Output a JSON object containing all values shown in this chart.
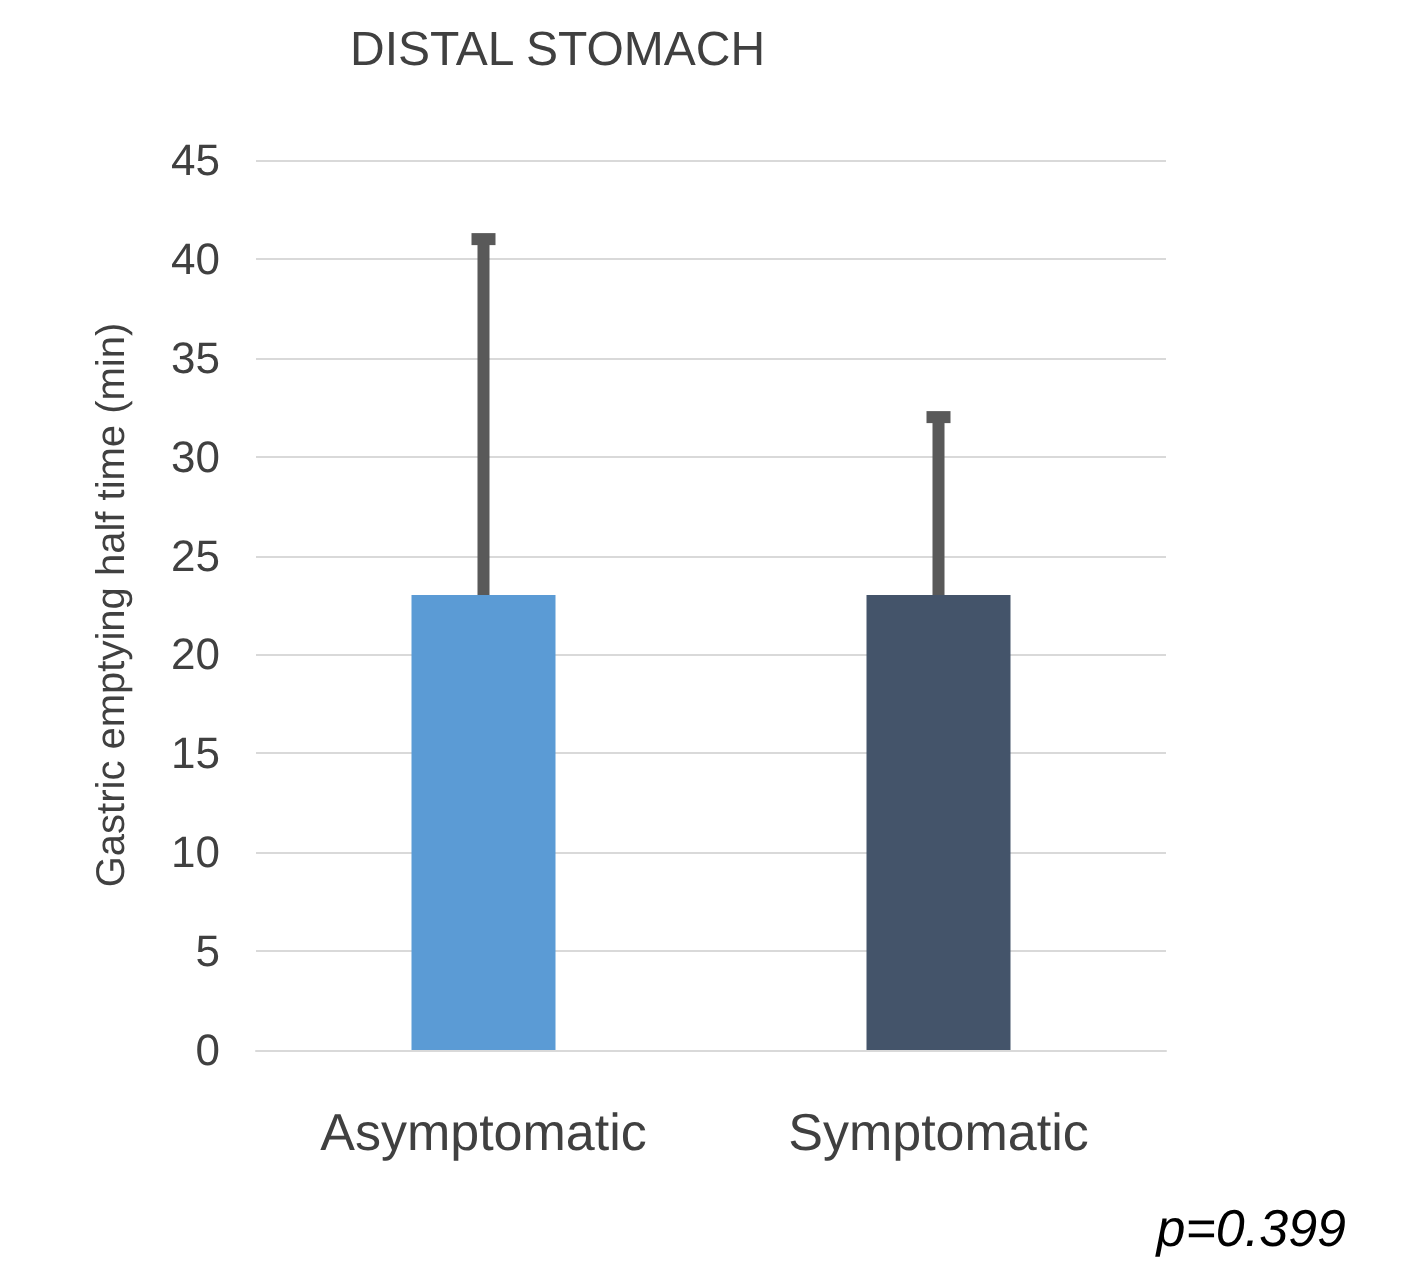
{
  "chart_data": {
    "type": "bar",
    "title": "DISTAL STOMACH",
    "ylabel": "Gastric emptying half time (min)",
    "categories": [
      "Asymptomatic",
      "Symptomatic"
    ],
    "values": [
      23,
      23
    ],
    "colors": [
      "#5b9bd5",
      "#44546a"
    ],
    "errors": [
      [
        23,
        41
      ],
      [
        23,
        32
      ]
    ],
    "ylim": [
      0,
      45
    ],
    "yticks": [
      0,
      5,
      10,
      15,
      20,
      25,
      30,
      35,
      40,
      45
    ],
    "grid": "y",
    "annotations": [
      "p=0.399"
    ]
  }
}
